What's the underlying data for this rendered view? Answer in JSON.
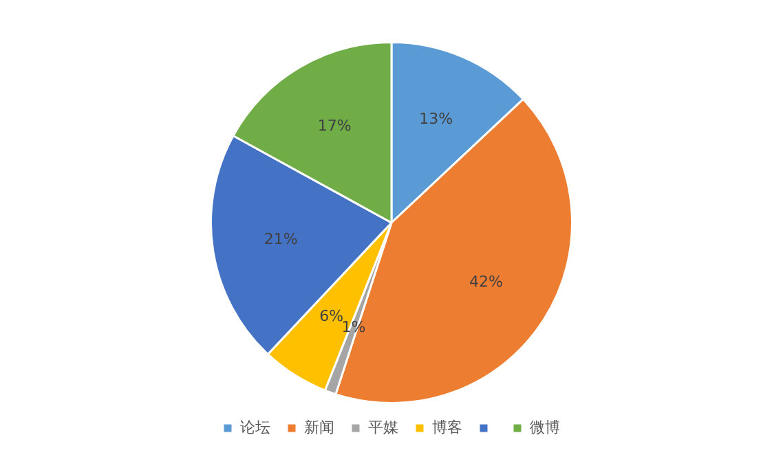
{
  "chart_data": {
    "type": "pie",
    "categories": [
      "论坛",
      "新闻",
      "平媒",
      "博客",
      null,
      "微博"
    ],
    "values": [
      13,
      42,
      1,
      6,
      21,
      17
    ],
    "colors": [
      "#5b9bd5",
      "#ed7d31",
      "#a5a5a5",
      "#ffc000",
      "#4472c4",
      "#70ad47"
    ],
    "value_labels": [
      "13%",
      "42%",
      "1%",
      "6%",
      "21%",
      "17%"
    ],
    "legend": "bottom"
  }
}
